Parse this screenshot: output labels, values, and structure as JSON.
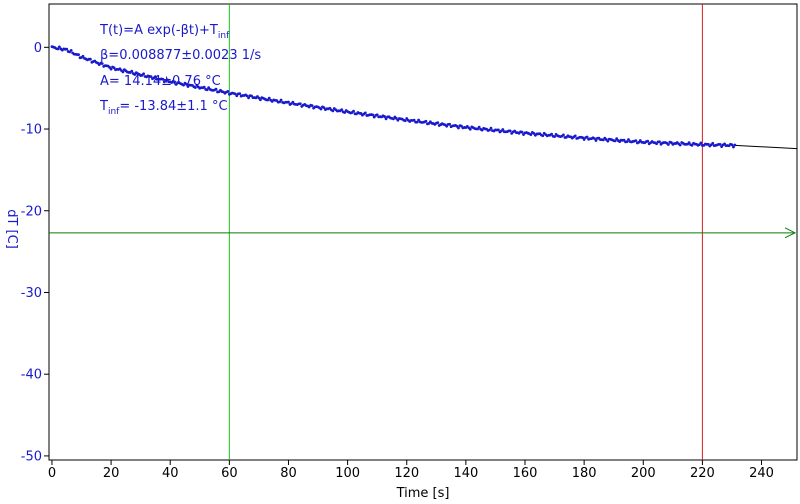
{
  "chart_data": {
    "type": "line",
    "xlabel": "Time [s]",
    "ylabel": "dT [C]",
    "xlim": [
      -1,
      252
    ],
    "ylim": [
      -50.5,
      5.3
    ],
    "xticks": [
      0,
      20,
      40,
      60,
      80,
      100,
      120,
      140,
      160,
      180,
      200,
      220,
      240
    ],
    "yticks": [
      0,
      -10,
      -20,
      -30,
      -40,
      -50
    ],
    "grid": false,
    "series": [
      {
        "kind": "measured",
        "color": "#1a1acc",
        "x_start": 0,
        "x_end": 231,
        "x_step": 0.5,
        "points": [
          [
            0,
            0
          ],
          [
            5,
            -0.3
          ],
          [
            10,
            -1.2
          ],
          [
            20,
            -2.5
          ],
          [
            40,
            -4.2
          ],
          [
            60,
            -5.6
          ],
          [
            80,
            -6.8
          ],
          [
            100,
            -7.9
          ],
          [
            120,
            -8.9
          ],
          [
            140,
            -9.8
          ],
          [
            160,
            -10.5
          ],
          [
            180,
            -11.1
          ],
          [
            200,
            -11.6
          ],
          [
            220,
            -11.9
          ],
          [
            231,
            -12.0
          ]
        ]
      },
      {
        "kind": "fit",
        "color": "#000000",
        "points": [
          [
            231,
            -12.0
          ],
          [
            252,
            -12.4
          ]
        ]
      }
    ],
    "markers": {
      "vertical_green_x": 60,
      "vertical_red_x": 220,
      "horizontal_green_y": -22.7
    },
    "annotations": {
      "equation_main": "T(t)=A exp(-βt)+T",
      "equation_sub": "inf",
      "beta": "β=0.008877±0.0023 1/s",
      "amplitude": "A= 14.14±0.76 °C",
      "tinf_main": "T",
      "tinf_sub": "inf",
      "tinf_value": "= -13.84±1.1 °C"
    },
    "colors": {
      "axes": "#000000",
      "tick_labels_y": "#1a1acc",
      "tick_labels_x": "#000000",
      "annotation_text": "#1a1acc",
      "green_marker": "#1fbf1f",
      "red_marker": "#d42020",
      "horizontal_marker": "#0a7a0a"
    }
  }
}
